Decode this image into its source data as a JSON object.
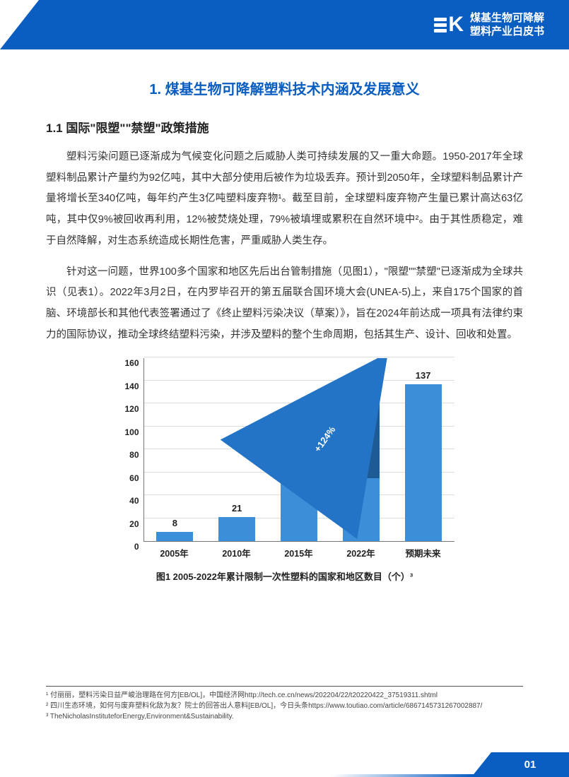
{
  "header": {
    "logo_letter": "K",
    "title_line1": "煤基生物可降解",
    "title_line2": "塑料产业白皮书"
  },
  "heading1": "1. 煤基生物可降解塑料技术内涵及发展意义",
  "heading2": "1.1 国际\"限塑\"\"禁塑\"政策措施",
  "para1": "塑料污染问题已逐渐成为气候变化问题之后威胁人类可持续发展的又一重大命题。1950-2017年全球塑料制品累计产量约为92亿吨，其中大部分使用后被作为垃圾丢弃。预计到2050年，全球塑料制品累计产量将增长至340亿吨，每年约产生3亿吨塑料废弃物¹。截至目前，全球塑料废弃物产生量已累计高达63亿吨，其中仅9%被回收再利用，12%被焚烧处理，79%被填埋或累积在自然环境中²。由于其性质稳定，难于自然降解，对生态系统造成长期性危害，严重威胁人类生存。",
  "para2": "针对这一问题，世界100多个国家和地区先后出台管制措施（见图1），\"限塑\"\"禁塑\"已逐渐成为全球共识（见表1）。2022年3月2日，在内罗毕召开的第五届联合国环境大会(UNEA-5)上，来自175个国家的首脑、环境部长和其他代表签署通过了《终止塑料污染决议（草案）》，旨在2024年前达成一项具有法律约束力的国际协议，推动全球终结塑料污染，并涉及塑料的整个生命周期，包括其生产、设计、回收和处置。",
  "chart": {
    "type": "bar",
    "ymax": 160,
    "ytick_step": 20,
    "yticks": [
      0,
      20,
      40,
      60,
      80,
      100,
      120,
      140,
      160
    ],
    "categories": [
      "2005年",
      "2010年",
      "2015年",
      "2022年",
      "预期未来"
    ],
    "values": [
      8,
      21,
      55,
      123,
      137
    ],
    "stacked_base": [
      null,
      null,
      null,
      55,
      null
    ],
    "colors": {
      "bar_main": "#3b8fd9",
      "bar_dark": "#1e5a96",
      "arrow": "#2374c7",
      "grid": "#dddddd",
      "axis": "#777777"
    },
    "arrow_label": "+124%",
    "caption": "图1 2005-2022年累计限制一次性塑料的国家和地区数目（个）³"
  },
  "footnotes": {
    "f1": "¹ 付丽丽，塑料污染日益严峻治理路在何方[EB/OL]，中国经济网http://tech.ce.cn/news/202204/22/t20220422_37519311.shtml",
    "f2": "² 四川生态环境，如何与废弃塑料化敌为友？院士的回答出人意料[EB/OL]，今日头条https://www.toutiao.com/article/6867145731267002887/",
    "f3": "³ TheNicholasInstituteforEnergy,Environment&Sustainability."
  },
  "page_number": "01"
}
